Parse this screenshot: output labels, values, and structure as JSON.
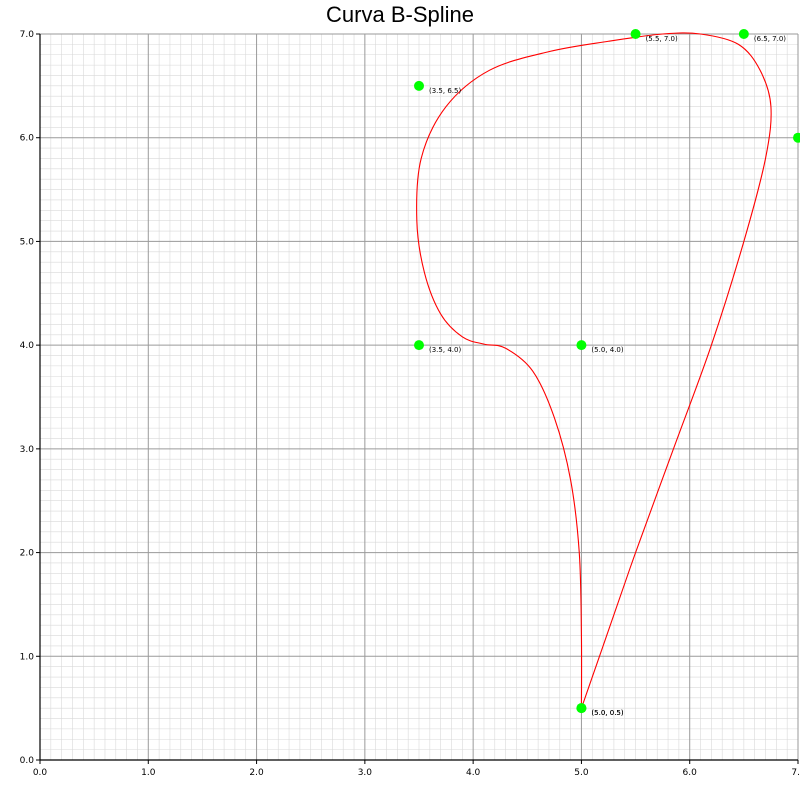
{
  "chart_data": {
    "type": "line",
    "title": "Curva B-Spline",
    "xlabel": "",
    "ylabel": "",
    "xlim": [
      0,
      7
    ],
    "ylim": [
      0,
      7
    ],
    "x_ticks": [
      "0.0",
      "1.0",
      "2.0",
      "3.0",
      "4.0",
      "5.0",
      "6.0",
      "7."
    ],
    "y_ticks": [
      "0.0",
      "1.0",
      "2.0",
      "3.0",
      "4.0",
      "5.0",
      "6.0",
      "7.0"
    ],
    "grid": true,
    "minor_grid": true,
    "colors": {
      "curve": "#ff0000",
      "control_point": "#00ff00",
      "major_grid": "#9a9a9a",
      "minor_grid": "#d9d9d9"
    },
    "control_points": [
      {
        "x": 5.0,
        "y": 0.5,
        "label": "(5.0, 0.5)"
      },
      {
        "x": 5.0,
        "y": 4.0,
        "label": "(5.0, 4.0)"
      },
      {
        "x": 3.5,
        "y": 4.0,
        "label": "(3.5, 4.0)"
      },
      {
        "x": 3.5,
        "y": 6.5,
        "label": "(3.5, 6.5)"
      },
      {
        "x": 5.5,
        "y": 7.0,
        "label": "(5.5, 7.0)"
      },
      {
        "x": 6.5,
        "y": 7.0,
        "label": "(6.5, 7.0)"
      },
      {
        "x": 7.0,
        "y": 6.0,
        "label": ""
      },
      {
        "x": 5.0,
        "y": 0.5,
        "label": "(5.0, 0.5)"
      }
    ],
    "series": [
      {
        "curve": [
          [
            5.0,
            0.5
          ],
          [
            5.0,
            1.2
          ],
          [
            4.98,
            2.0
          ],
          [
            4.9,
            2.7
          ],
          [
            4.75,
            3.3
          ],
          [
            4.55,
            3.75
          ],
          [
            4.3,
            3.97
          ],
          [
            4.1,
            4.01
          ],
          [
            3.9,
            4.08
          ],
          [
            3.7,
            4.3
          ],
          [
            3.55,
            4.7
          ],
          [
            3.48,
            5.2
          ],
          [
            3.52,
            5.8
          ],
          [
            3.75,
            6.3
          ],
          [
            4.15,
            6.65
          ],
          [
            4.7,
            6.83
          ],
          [
            5.25,
            6.93
          ],
          [
            5.75,
            7.0
          ],
          [
            6.1,
            7.0
          ],
          [
            6.45,
            6.9
          ],
          [
            6.65,
            6.65
          ],
          [
            6.75,
            6.3
          ],
          [
            6.7,
            5.8
          ],
          [
            6.5,
            5.0
          ],
          [
            6.2,
            4.0
          ],
          [
            5.85,
            3.0
          ],
          [
            5.5,
            2.0
          ],
          [
            5.2,
            1.1
          ],
          [
            5.0,
            0.5
          ]
        ]
      }
    ]
  }
}
